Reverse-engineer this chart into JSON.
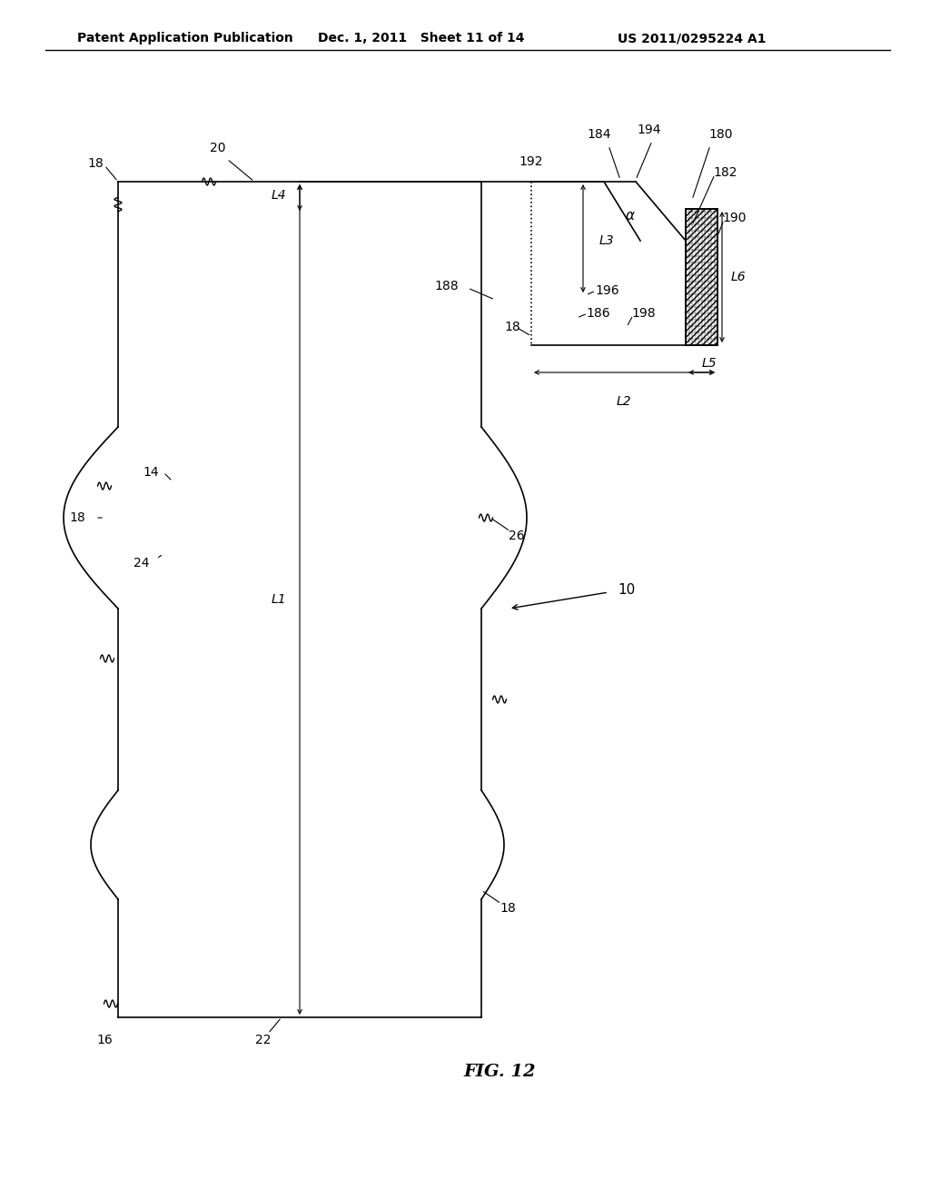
{
  "title_left": "Patent Application Publication",
  "title_mid": "Dec. 1, 2011   Sheet 11 of 14",
  "title_right": "US 2011/0295224 A1",
  "fig_label": "FIG. 12",
  "background_color": "#ffffff",
  "line_color": "#000000",
  "header_fontsize": 10,
  "label_fontsize": 10,
  "fig_label_fontsize": 14
}
